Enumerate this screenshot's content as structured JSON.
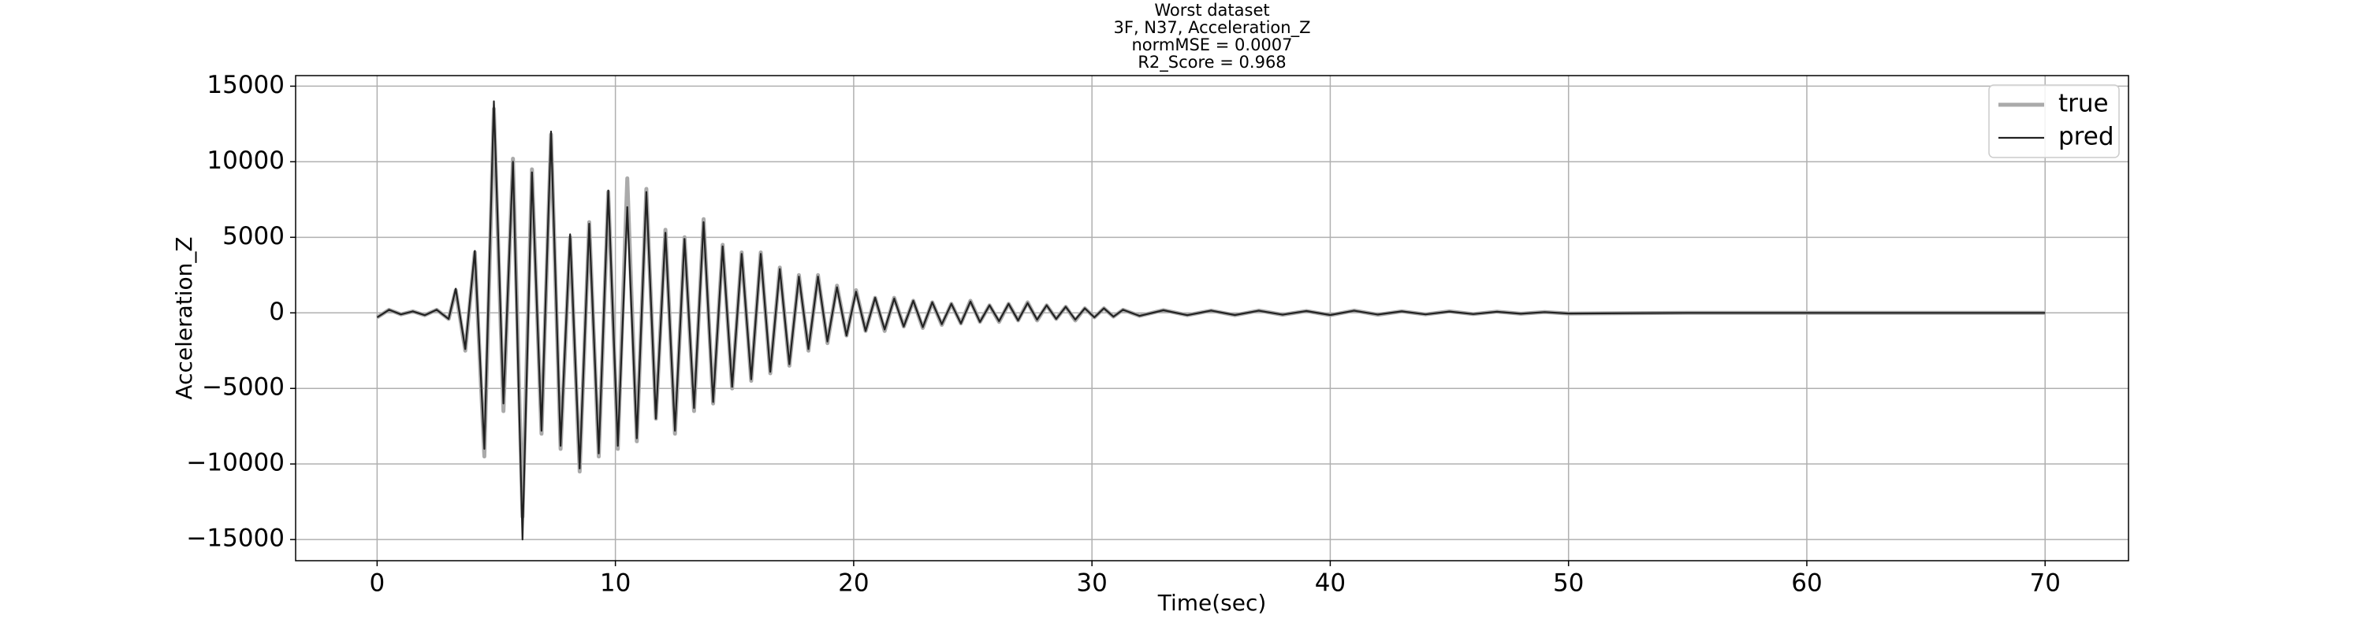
{
  "chart_data": {
    "type": "line",
    "title_lines": [
      "Worst dataset",
      "3F, N37, Acceleration_Z",
      "normMSE = 0.0007",
      "R2_Score = 0.968"
    ],
    "xlabel": "Time(sec)",
    "ylabel": "Acceleration_Z",
    "x": [
      0,
      0.5,
      1,
      1.5,
      2,
      2.5,
      3,
      3.3,
      3.7,
      4.1,
      4.5,
      4.9,
      5.3,
      5.7,
      6.1,
      6.5,
      6.9,
      7.3,
      7.7,
      8.1,
      8.5,
      8.9,
      9.3,
      9.7,
      10.1,
      10.5,
      10.9,
      11.3,
      11.7,
      12.1,
      12.5,
      12.9,
      13.3,
      13.7,
      14.1,
      14.5,
      14.9,
      15.3,
      15.7,
      16.1,
      16.5,
      16.9,
      17.3,
      17.7,
      18.1,
      18.5,
      18.9,
      19.3,
      19.7,
      20.1,
      20.5,
      20.9,
      21.3,
      21.7,
      22.1,
      22.5,
      22.9,
      23.3,
      23.7,
      24.1,
      24.5,
      24.9,
      25.3,
      25.7,
      26.1,
      26.5,
      26.9,
      27.3,
      27.7,
      28.1,
      28.5,
      28.9,
      29.3,
      29.7,
      30.1,
      30.5,
      30.9,
      31.3,
      32,
      33,
      34,
      35,
      36,
      37,
      38,
      39,
      40,
      41,
      42,
      43,
      44,
      45,
      46,
      47,
      48,
      49,
      50,
      55,
      60,
      65,
      70
    ],
    "series": [
      {
        "name": "true",
        "color": "#aaaaaa",
        "values": [
          -300,
          200,
          -100,
          100,
          -150,
          200,
          -400,
          1500,
          -2500,
          4000,
          -9500,
          13500,
          -6500,
          10200,
          -13500,
          9500,
          -8000,
          11800,
          -9000,
          5000,
          -10500,
          6000,
          -9500,
          8000,
          -9000,
          8900,
          -8500,
          8200,
          -7000,
          5500,
          -8000,
          5000,
          -6500,
          6200,
          -6000,
          4500,
          -5000,
          4000,
          -4500,
          4000,
          -4000,
          3000,
          -3500,
          2500,
          -2500,
          2500,
          -2000,
          1800,
          -1500,
          1500,
          -1200,
          1000,
          -1200,
          1000,
          -900,
          800,
          -1000,
          700,
          -800,
          600,
          -700,
          800,
          -600,
          500,
          -600,
          600,
          -500,
          700,
          -500,
          500,
          -400,
          400,
          -500,
          300,
          -300,
          300,
          -250,
          200,
          -200,
          180,
          -150,
          150,
          -150,
          150,
          -120,
          120,
          -150,
          150,
          -120,
          100,
          -100,
          100,
          -80,
          80,
          -60,
          50,
          -40,
          0,
          0,
          0,
          0
        ]
      },
      {
        "name": "pred",
        "color": "#222222",
        "values": [
          -300,
          200,
          -100,
          100,
          -150,
          200,
          -400,
          1600,
          -2400,
          4100,
          -9000,
          14000,
          -6000,
          10000,
          -15000,
          9300,
          -7800,
          12000,
          -8800,
          5200,
          -10300,
          5900,
          -9300,
          8100,
          -8800,
          7000,
          -8300,
          8000,
          -7000,
          5300,
          -7800,
          4900,
          -6300,
          6000,
          -5900,
          4400,
          -4900,
          3900,
          -4400,
          3900,
          -3900,
          2900,
          -3400,
          2400,
          -2400,
          2400,
          -1900,
          1700,
          -1500,
          1400,
          -1200,
          1000,
          -1100,
          950,
          -900,
          800,
          -950,
          700,
          -750,
          600,
          -700,
          750,
          -600,
          500,
          -550,
          600,
          -500,
          650,
          -450,
          500,
          -400,
          400,
          -450,
          300,
          -300,
          300,
          -250,
          200,
          -200,
          170,
          -150,
          150,
          -140,
          140,
          -120,
          120,
          -140,
          140,
          -110,
          100,
          -100,
          90,
          -80,
          70,
          -60,
          50,
          -40,
          0,
          0,
          0,
          0
        ]
      }
    ],
    "xlim": [
      -3.42,
      73.5
    ],
    "ylim": [
      -16400,
      15700
    ],
    "xticks": [
      0,
      10,
      20,
      30,
      40,
      50,
      60,
      70
    ],
    "yticks": [
      {
        "value": -15000,
        "label": "−15000"
      },
      {
        "value": -10000,
        "label": "−10000"
      },
      {
        "value": -5000,
        "label": "−5000"
      },
      0,
      5000,
      10000,
      15000
    ],
    "grid": true,
    "legend": "upper right"
  }
}
